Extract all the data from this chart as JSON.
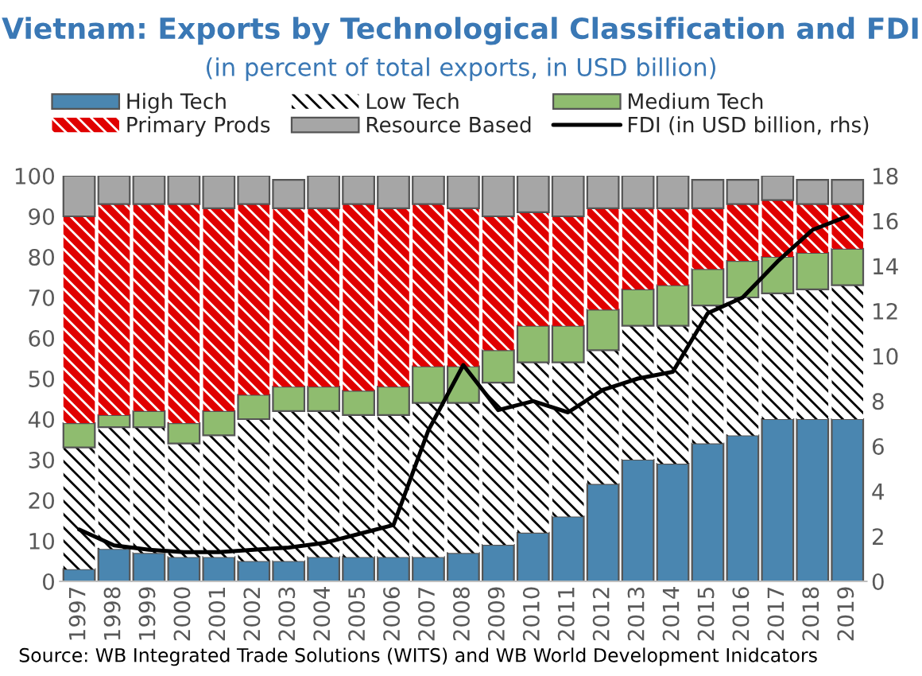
{
  "chart_data": {
    "type": "bar",
    "title": "Vietnam: Exports by Technological Classification and FDI",
    "subtitle": "(in percent of total exports, in USD billion)",
    "categories": [
      "1997",
      "1998",
      "1999",
      "2000",
      "2001",
      "2002",
      "2003",
      "2004",
      "2005",
      "2006",
      "2007",
      "2008",
      "2009",
      "2010",
      "2011",
      "2012",
      "2013",
      "2014",
      "2015",
      "2016",
      "2017",
      "2018",
      "2019"
    ],
    "stacked": true,
    "series": [
      {
        "name": "High Tech",
        "color": "#4a86b0",
        "values": [
          3,
          8,
          7,
          6,
          6,
          5,
          5,
          6,
          6,
          6,
          6,
          7,
          9,
          12,
          16,
          24,
          30,
          29,
          34,
          36,
          40,
          40,
          40
        ]
      },
      {
        "name": "Low Tech",
        "color": "#ffffff",
        "values": [
          30,
          30,
          31,
          28,
          30,
          35,
          37,
          36,
          35,
          35,
          38,
          37,
          40,
          42,
          38,
          33,
          33,
          34,
          34,
          34,
          31,
          32,
          33
        ]
      },
      {
        "name": "Medium Tech",
        "color": "#8fbc6f",
        "values": [
          6,
          3,
          4,
          5,
          6,
          6,
          6,
          6,
          6,
          7,
          9,
          9,
          8,
          9,
          9,
          10,
          9,
          10,
          9,
          9,
          9,
          9,
          9
        ]
      },
      {
        "name": "Primary Prods",
        "color": "#e00000",
        "values": [
          51,
          52,
          51,
          54,
          50,
          47,
          44,
          44,
          46,
          44,
          40,
          39,
          33,
          28,
          27,
          25,
          20,
          19,
          15,
          14,
          14,
          12,
          11
        ]
      },
      {
        "name": "Resource Based",
        "color": "#a6a6a6",
        "values": [
          10,
          7,
          7,
          7,
          8,
          7,
          7,
          8,
          7,
          8,
          7,
          8,
          10,
          9,
          10,
          8,
          8,
          8,
          7,
          6,
          6,
          6,
          6
        ]
      },
      {
        "name": "FDI (in USD billion, rhs)",
        "type": "line",
        "axis": "y2",
        "color": "#000000",
        "values": [
          2.3,
          1.6,
          1.4,
          1.3,
          1.3,
          1.4,
          1.5,
          1.7,
          2.1,
          2.5,
          6.7,
          9.6,
          7.6,
          8.0,
          7.5,
          8.5,
          9.0,
          9.3,
          11.9,
          12.6,
          14.2,
          15.6,
          16.2
        ]
      }
    ],
    "ylim": [
      0,
      100
    ],
    "yticks": [
      0,
      10,
      20,
      30,
      40,
      50,
      60,
      70,
      80,
      90,
      100
    ],
    "y2lim": [
      0,
      18
    ],
    "y2ticks": [
      0,
      2,
      4,
      6,
      8,
      10,
      12,
      14,
      16,
      18
    ],
    "grid": false,
    "legend": "top",
    "marker": "none",
    "line_style": "solid",
    "annotations": [
      "Source: WB Integrated Trade Solutions (WITS) and WB World Development Inidcators"
    ]
  }
}
